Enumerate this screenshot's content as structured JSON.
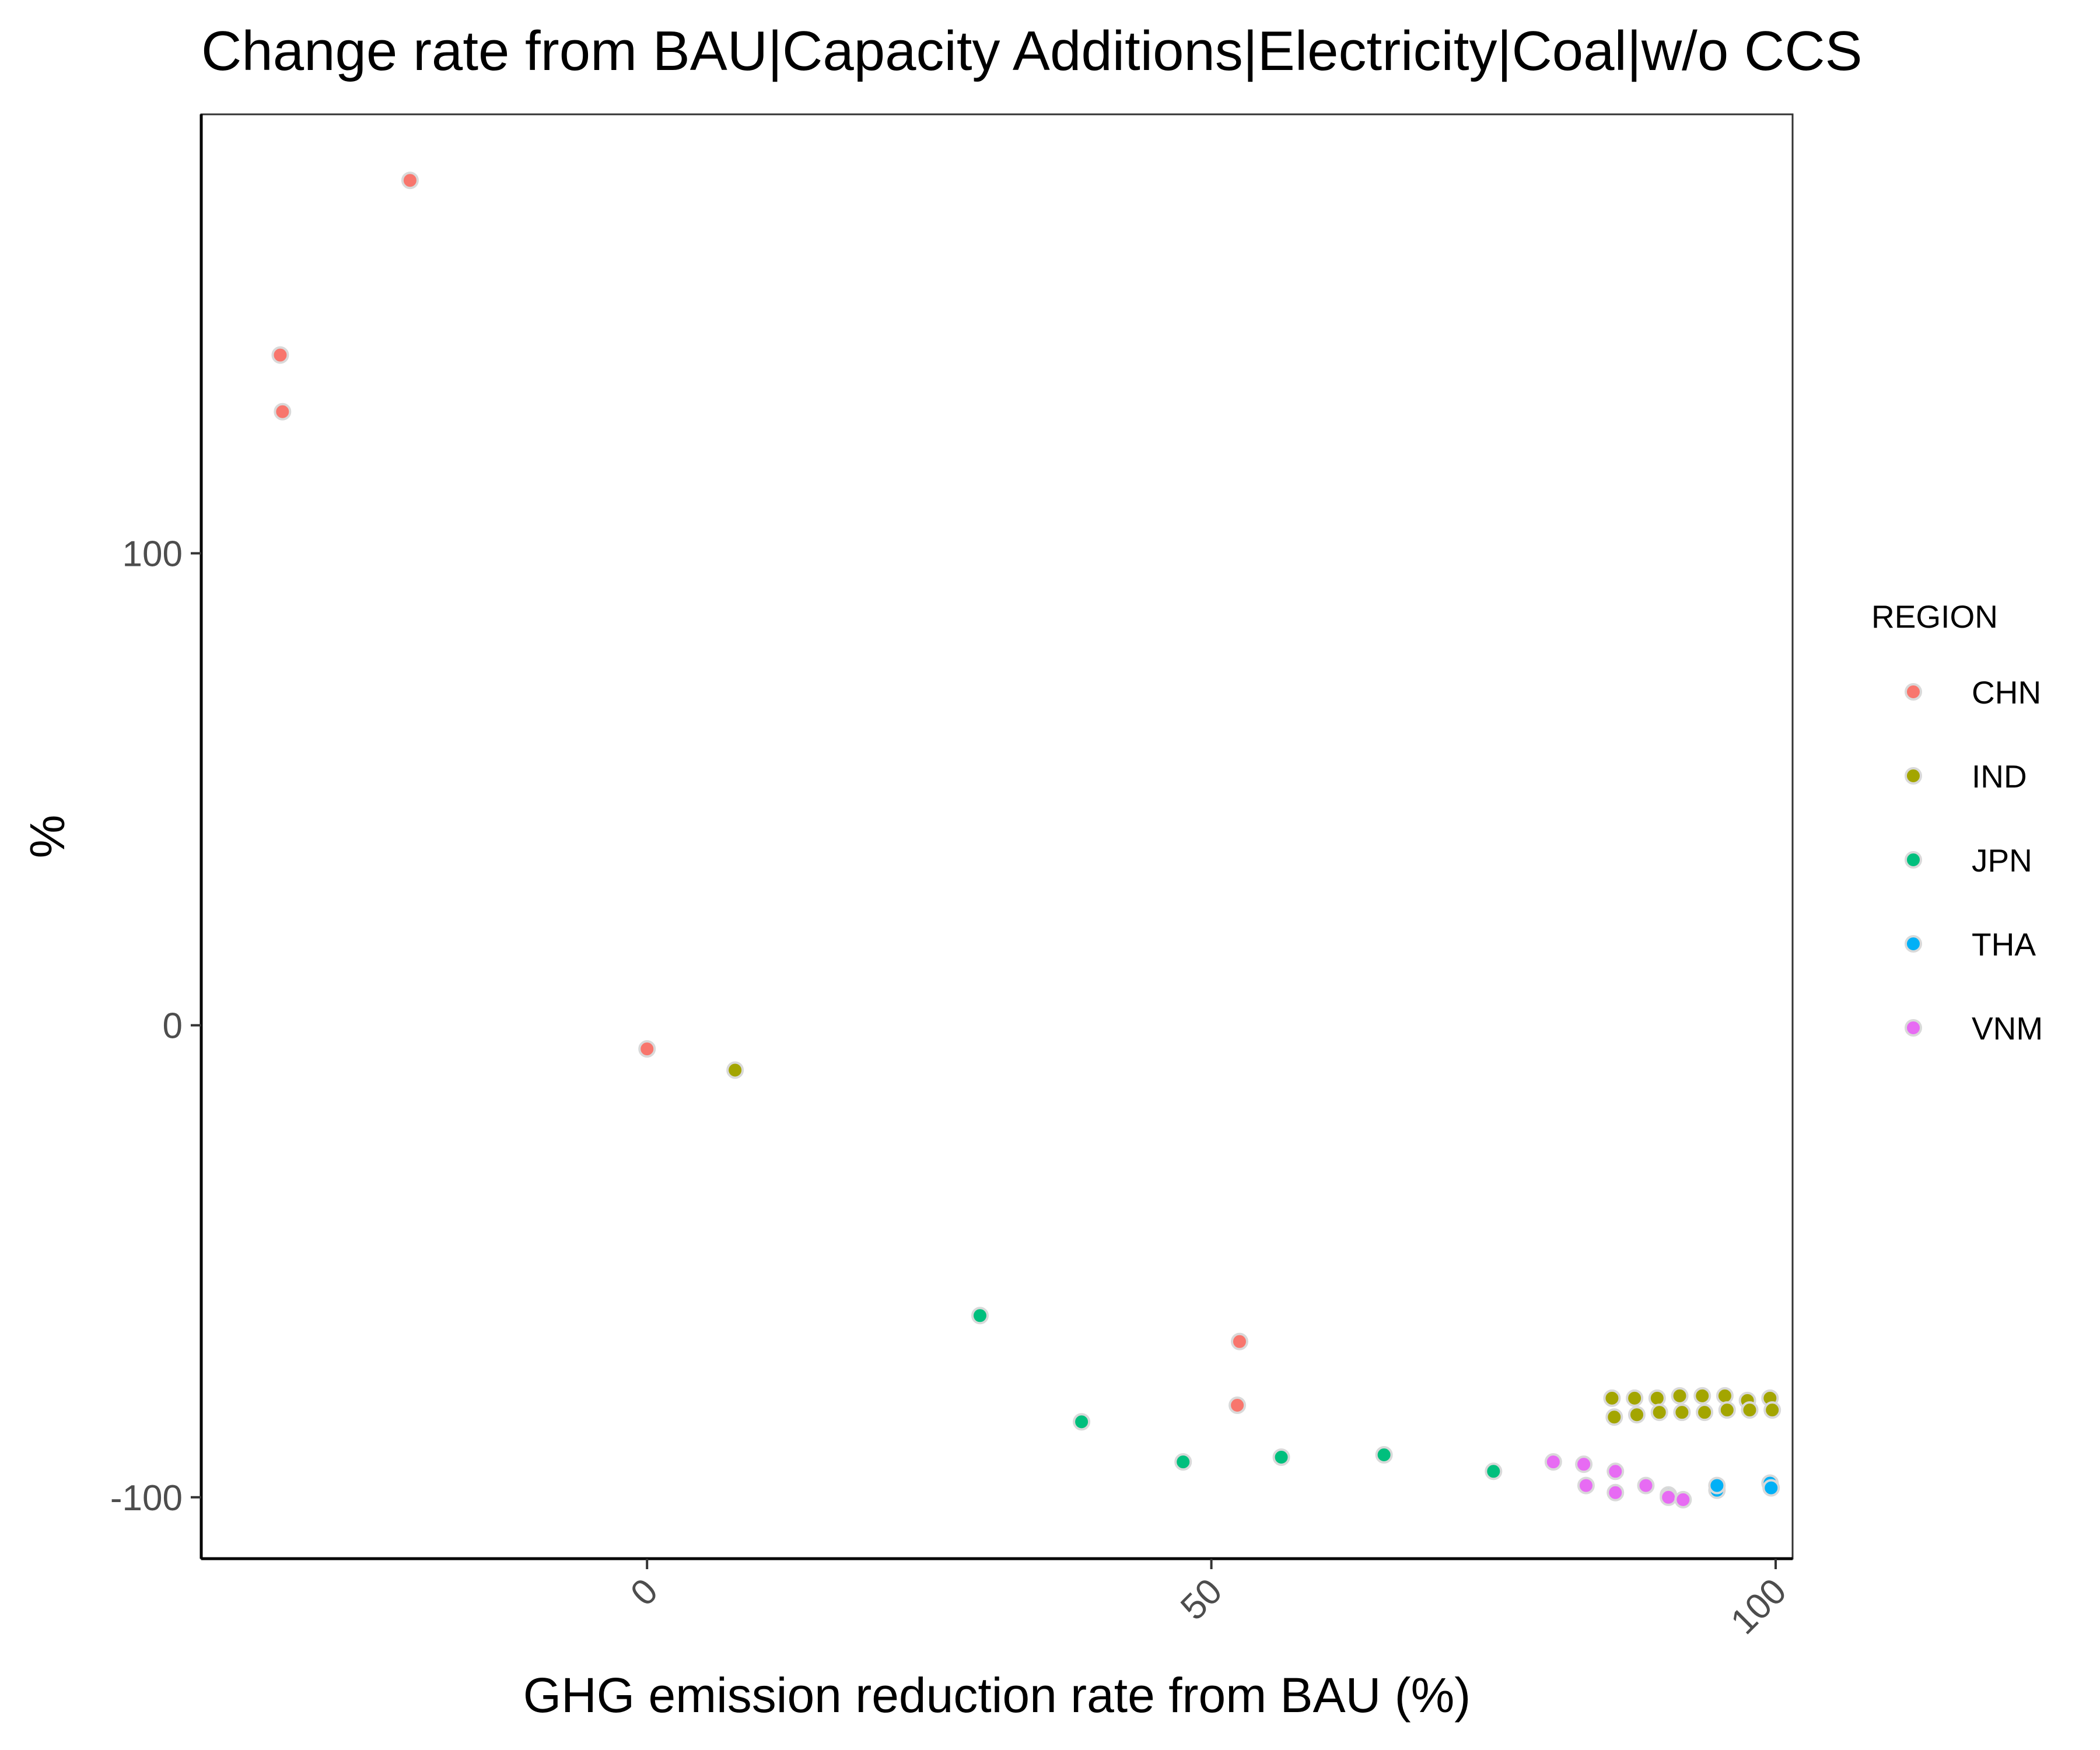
{
  "chart_data": {
    "type": "scatter",
    "title": "Change rate from BAU|Capacity Additions|Electricity|Coal|w/o CCS",
    "xlabel": "GHG emission reduction rate from BAU (%)",
    "ylabel": "%",
    "xlim": [
      -39.5,
      101.5
    ],
    "ylim": [
      -113,
      193
    ],
    "x_ticks": [
      0,
      50,
      100
    ],
    "y_ticks": [
      -100,
      0,
      100
    ],
    "grid": false,
    "legend": {
      "title": "REGION",
      "placement": "right"
    },
    "series": [
      {
        "name": "CHN",
        "color": "#F8766D",
        "points": [
          [
            -21,
            179
          ],
          [
            -32.5,
            142
          ],
          [
            -32.3,
            130
          ],
          [
            0,
            -5
          ],
          [
            52.5,
            -67
          ],
          [
            52.3,
            -80.5
          ]
        ]
      },
      {
        "name": "IND",
        "color": "#A3A500",
        "points": [
          [
            7.8,
            -9.5
          ],
          [
            85.5,
            -79
          ],
          [
            85.7,
            -83
          ],
          [
            87.5,
            -79
          ],
          [
            87.7,
            -82.5
          ],
          [
            89.5,
            -79
          ],
          [
            89.7,
            -82
          ],
          [
            91.5,
            -78.5
          ],
          [
            91.7,
            -82
          ],
          [
            93.5,
            -78.5
          ],
          [
            93.7,
            -82
          ],
          [
            95.5,
            -78.5
          ],
          [
            95.7,
            -81.5
          ],
          [
            97.5,
            -79.5
          ],
          [
            97.7,
            -81.5
          ],
          [
            99.5,
            -79
          ],
          [
            99.7,
            -81.5
          ]
        ]
      },
      {
        "name": "JPN",
        "color": "#00BF7D",
        "points": [
          [
            29.5,
            -61.5
          ],
          [
            38.5,
            -84
          ],
          [
            47.5,
            -92.5
          ],
          [
            56.2,
            -91.5
          ],
          [
            65.3,
            -91
          ],
          [
            75,
            -94.5
          ]
        ]
      },
      {
        "name": "THA",
        "color": "#00B0F6",
        "points": [
          [
            90.5,
            -99.5
          ],
          [
            94.8,
            -98.5
          ],
          [
            94.8,
            -97.5
          ],
          [
            99.5,
            -97
          ],
          [
            99.6,
            -98
          ]
        ]
      },
      {
        "name": "VNM",
        "color": "#E76BF3",
        "points": [
          [
            80.3,
            -92.5
          ],
          [
            83,
            -93
          ],
          [
            83.2,
            -97.5
          ],
          [
            85.8,
            -94.5
          ],
          [
            85.8,
            -99
          ],
          [
            88.5,
            -97.5
          ],
          [
            90.5,
            -100
          ],
          [
            91.8,
            -100.5
          ]
        ]
      }
    ]
  }
}
